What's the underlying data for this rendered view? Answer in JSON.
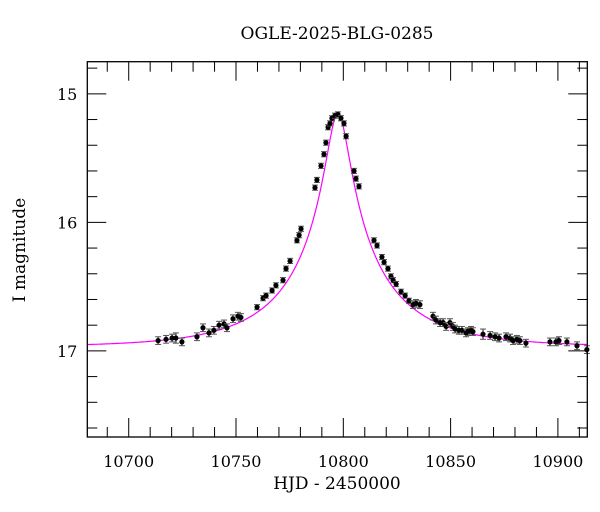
{
  "chart_data": {
    "type": "scatter",
    "title": "OGLE-2025-BLG-0285",
    "xlabel": "HJD - 2450000",
    "ylabel": "I magnitude",
    "xlim": [
      10680.7,
      10913.7
    ],
    "ylim": [
      17.67,
      14.75
    ],
    "y_inverted": true,
    "x_ticks": [
      10700,
      10750,
      10800,
      10850,
      10900
    ],
    "x_tick_labels": [
      "10700",
      "10750",
      "10800",
      "10850",
      "10900"
    ],
    "y_ticks": [
      15,
      16,
      17
    ],
    "y_tick_labels": [
      "15",
      "16",
      "17"
    ],
    "grid": false,
    "colors": {
      "points": "#000000",
      "model": "#ff00ff"
    },
    "series": [
      {
        "kind": "points_with_errorbars",
        "points": [
          [
            10713.7,
            16.92,
            0.03
          ],
          [
            10717.4,
            16.91,
            0.03
          ],
          [
            10720.2,
            16.9,
            0.03
          ],
          [
            10722.0,
            16.9,
            0.04
          ],
          [
            10724.8,
            16.93,
            0.03
          ],
          [
            10731.8,
            16.89,
            0.03
          ],
          [
            10734.6,
            16.82,
            0.03
          ],
          [
            10737.4,
            16.86,
            0.03
          ],
          [
            10739.7,
            16.84,
            0.03
          ],
          [
            10742.1,
            16.8,
            0.03
          ],
          [
            10744.4,
            16.79,
            0.03
          ],
          [
            10745.8,
            16.82,
            0.03
          ],
          [
            10748.6,
            16.75,
            0.03
          ],
          [
            10750.9,
            16.73,
            0.03
          ],
          [
            10752.3,
            16.74,
            0.03
          ],
          [
            10759.8,
            16.66,
            0.02
          ],
          [
            10762.6,
            16.59,
            0.02
          ],
          [
            10764.0,
            16.57,
            0.02
          ],
          [
            10766.8,
            16.53,
            0.02
          ],
          [
            10768.6,
            16.49,
            0.02
          ],
          [
            10771.9,
            16.45,
            0.02
          ],
          [
            10773.3,
            16.36,
            0.02
          ],
          [
            10775.2,
            16.3,
            0.02
          ],
          [
            10778.4,
            16.14,
            0.02
          ],
          [
            10779.4,
            16.1,
            0.02
          ],
          [
            10780.3,
            16.05,
            0.02
          ],
          [
            10786.8,
            15.73,
            0.02
          ],
          [
            10787.7,
            15.67,
            0.02
          ],
          [
            10789.6,
            15.56,
            0.02
          ],
          [
            10791.0,
            15.47,
            0.02
          ],
          [
            10791.9,
            15.38,
            0.02
          ],
          [
            10792.9,
            15.26,
            0.02
          ],
          [
            10793.8,
            15.23,
            0.02
          ],
          [
            10794.7,
            15.19,
            0.02
          ],
          [
            10796.1,
            15.17,
            0.02
          ],
          [
            10797.5,
            15.16,
            0.02
          ],
          [
            10798.9,
            15.19,
            0.02
          ],
          [
            10800.3,
            15.23,
            0.02
          ],
          [
            10801.3,
            15.33,
            0.02
          ],
          [
            10805.0,
            15.6,
            0.02
          ],
          [
            10805.9,
            15.66,
            0.02
          ],
          [
            10807.3,
            15.72,
            0.02
          ],
          [
            10814.3,
            16.14,
            0.02
          ],
          [
            10815.7,
            16.18,
            0.02
          ],
          [
            10818.0,
            16.27,
            0.02
          ],
          [
            10819.0,
            16.31,
            0.02
          ],
          [
            10820.8,
            16.36,
            0.02
          ],
          [
            10822.2,
            16.42,
            0.02
          ],
          [
            10823.2,
            16.45,
            0.02
          ],
          [
            10824.6,
            16.48,
            0.02
          ],
          [
            10826.9,
            16.54,
            0.02
          ],
          [
            10828.8,
            16.57,
            0.02
          ],
          [
            10830.6,
            16.61,
            0.02
          ],
          [
            10832.5,
            16.64,
            0.03
          ],
          [
            10833.9,
            16.63,
            0.03
          ],
          [
            10835.7,
            16.64,
            0.03
          ],
          [
            10841.8,
            16.73,
            0.03
          ],
          [
            10843.2,
            16.76,
            0.03
          ],
          [
            10845.1,
            16.78,
            0.03
          ],
          [
            10846.5,
            16.78,
            0.03
          ],
          [
            10847.9,
            16.81,
            0.03
          ],
          [
            10849.7,
            16.78,
            0.03
          ],
          [
            10851.1,
            16.81,
            0.03
          ],
          [
            10852.1,
            16.83,
            0.03
          ],
          [
            10853.9,
            16.84,
            0.03
          ],
          [
            10855.3,
            16.84,
            0.03
          ],
          [
            10857.2,
            16.86,
            0.03
          ],
          [
            10858.1,
            16.85,
            0.03
          ],
          [
            10859.5,
            16.84,
            0.03
          ],
          [
            10860.4,
            16.85,
            0.03
          ],
          [
            10865.1,
            16.87,
            0.04
          ],
          [
            10868.4,
            16.88,
            0.03
          ],
          [
            10870.7,
            16.89,
            0.03
          ],
          [
            10872.6,
            16.9,
            0.03
          ],
          [
            10875.8,
            16.89,
            0.03
          ],
          [
            10877.7,
            16.9,
            0.03
          ],
          [
            10879.1,
            16.92,
            0.03
          ],
          [
            10880.9,
            16.91,
            0.03
          ],
          [
            10882.3,
            16.92,
            0.03
          ],
          [
            10885.1,
            16.94,
            0.03
          ],
          [
            10896.3,
            16.93,
            0.03
          ],
          [
            10899.1,
            16.93,
            0.03
          ],
          [
            10900.5,
            16.92,
            0.03
          ],
          [
            10904.2,
            16.93,
            0.03
          ],
          [
            10908.9,
            16.96,
            0.03
          ],
          [
            10913.5,
            16.99,
            0.03
          ]
        ]
      },
      {
        "kind": "model_curve",
        "color": "#ff00ff"
      }
    ]
  }
}
